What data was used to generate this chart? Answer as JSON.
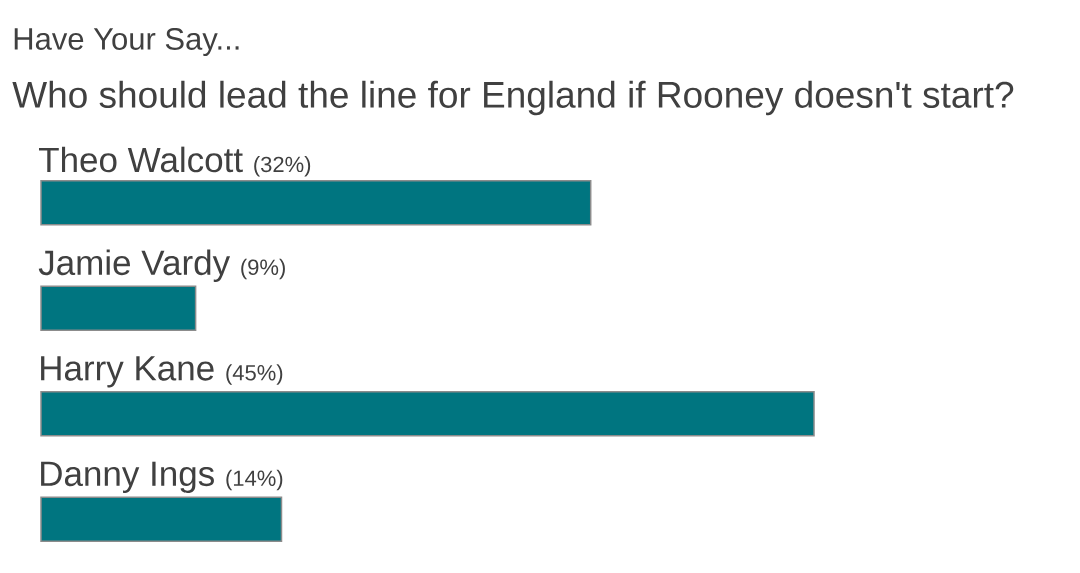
{
  "chart_data": {
    "type": "bar",
    "orientation": "horizontal",
    "title": "Have Your Say...",
    "subtitle": "Who should lead the line for England if Rooney doesn't start?",
    "categories": [
      "Theo Walcott",
      "Jamie Vardy",
      "Harry Kane",
      "Danny Ings"
    ],
    "values": [
      32,
      9,
      45,
      14
    ],
    "value_labels": [
      "(32%)",
      "(9%)",
      "(45%)",
      "(14%)"
    ],
    "color": "#007580"
  }
}
